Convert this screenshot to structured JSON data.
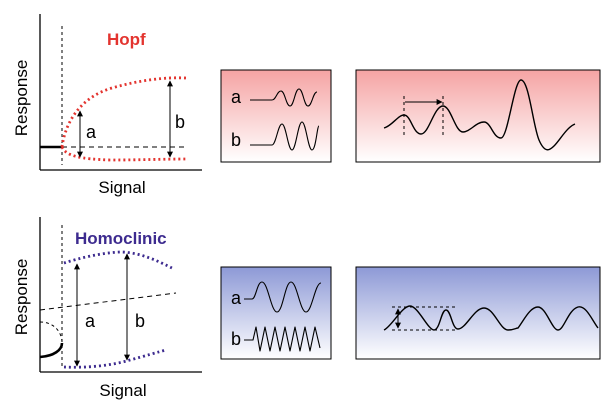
{
  "hopf": {
    "title": "Hopf",
    "ylabel": "Response",
    "xlabel": "Signal",
    "marker_a": "a",
    "marker_b": "b",
    "inset_a": "a",
    "inset_b": "b",
    "color": "#e3342f"
  },
  "homoclinic": {
    "title": "Homoclinic",
    "ylabel": "Response",
    "xlabel": "Signal",
    "marker_a": "a",
    "marker_b": "b",
    "inset_a": "a",
    "inset_b": "b",
    "color": "#3d2b8f"
  }
}
